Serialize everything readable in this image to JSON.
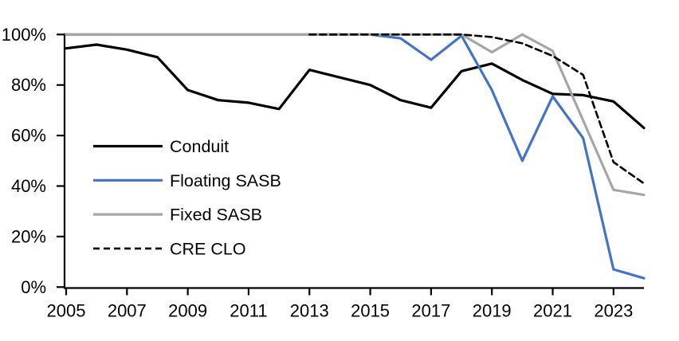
{
  "chart_data": {
    "type": "line",
    "title": "",
    "xlabel": "",
    "ylabel": "",
    "x": [
      2005,
      2006,
      2007,
      2008,
      2009,
      2010,
      2011,
      2012,
      2013,
      2014,
      2015,
      2016,
      2017,
      2018,
      2019,
      2020,
      2021,
      2022,
      2023,
      2024
    ],
    "series": [
      {
        "name": "Conduit",
        "color": "#000000",
        "dash": "solid",
        "values": [
          94.5,
          96,
          94,
          91,
          78,
          74,
          73,
          70.5,
          86,
          83,
          80,
          74,
          71,
          85.5,
          88.5,
          82,
          76.5,
          76,
          73.5,
          63
        ]
      },
      {
        "name": "Floating SASB",
        "color": "#4472C4",
        "dash": "solid",
        "values": [
          100,
          100,
          100,
          100,
          100,
          100,
          100,
          100,
          100,
          100,
          100,
          98.5,
          90,
          99.5,
          78,
          50,
          75.5,
          59,
          7,
          3.5
        ]
      },
      {
        "name": "Fixed SASB",
        "color": "#A6A6A6",
        "dash": "solid",
        "values": [
          100,
          100,
          100,
          100,
          100,
          100,
          100,
          100,
          100,
          100,
          100,
          100,
          100,
          100,
          93,
          100,
          93.5,
          66,
          38.5,
          36.5
        ]
      },
      {
        "name": "CRE CLO",
        "color": "#000000",
        "dash": "dashed",
        "values": [
          null,
          null,
          null,
          null,
          null,
          null,
          null,
          null,
          100,
          100,
          100,
          100,
          100,
          100,
          99,
          96.5,
          91.5,
          84,
          49.5,
          41
        ]
      }
    ],
    "ylim": [
      0,
      100
    ],
    "yticks": [
      {
        "value": 0,
        "label": "0%"
      },
      {
        "value": 20,
        "label": "20%"
      },
      {
        "value": 40,
        "label": "40%"
      },
      {
        "value": 60,
        "label": "60%"
      },
      {
        "value": 80,
        "label": "80%"
      },
      {
        "value": 100,
        "label": "100%"
      }
    ],
    "xticks": [
      {
        "value": 2005,
        "label": "2005"
      },
      {
        "value": 2007,
        "label": "2007"
      },
      {
        "value": 2009,
        "label": "2009"
      },
      {
        "value": 2011,
        "label": "2011"
      },
      {
        "value": 2013,
        "label": "2013"
      },
      {
        "value": 2015,
        "label": "2015"
      },
      {
        "value": 2017,
        "label": "2017"
      },
      {
        "value": 2019,
        "label": "2019"
      },
      {
        "value": 2021,
        "label": "2021"
      },
      {
        "value": 2023,
        "label": "2023"
      }
    ],
    "grid": false,
    "legend_position": "inside-upper-left",
    "axis_color": "#000000"
  }
}
